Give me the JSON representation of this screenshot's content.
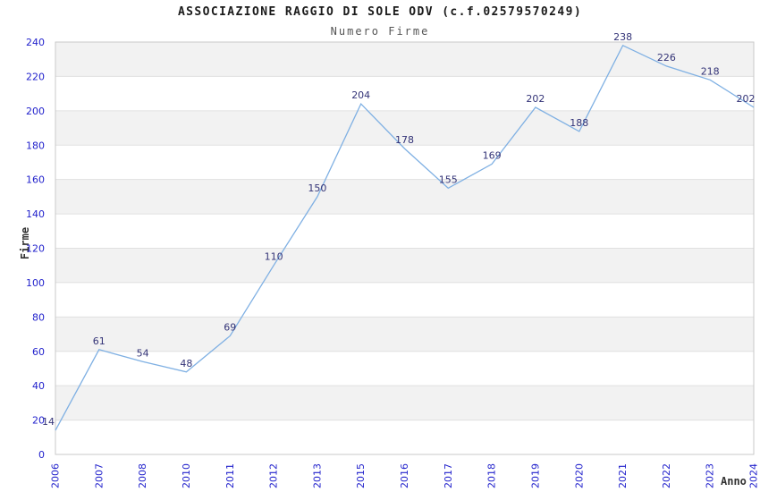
{
  "chart_data": {
    "type": "line",
    "title": "ASSOCIAZIONE RAGGIO DI SOLE ODV (c.f.02579570249)",
    "subtitle": "Numero Firme",
    "xlabel": "Anno",
    "ylabel": "Firme",
    "categories": [
      "2006",
      "2007",
      "2008",
      "2010",
      "2011",
      "2012",
      "2013",
      "2015",
      "2016",
      "2017",
      "2018",
      "2019",
      "2020",
      "2021",
      "2022",
      "2023",
      "2024"
    ],
    "values": [
      14,
      61,
      54,
      48,
      69,
      110,
      150,
      204,
      178,
      155,
      169,
      202,
      188,
      238,
      226,
      218,
      202
    ],
    "ylim": [
      0,
      240
    ],
    "ytick_step": 20,
    "grid": "horizontal-only",
    "legend": "none",
    "colors": {
      "line": "#7fb0e3",
      "data_label": "#333377",
      "tick_label": "#2222cc",
      "band": "#f2f2f2",
      "gridline": "#e0e0e0",
      "plot_border": "#c9c9c9",
      "title": "#1a1a1a",
      "subtitle": "#555555",
      "axis_label": "#333333",
      "background": "#ffffff"
    }
  }
}
